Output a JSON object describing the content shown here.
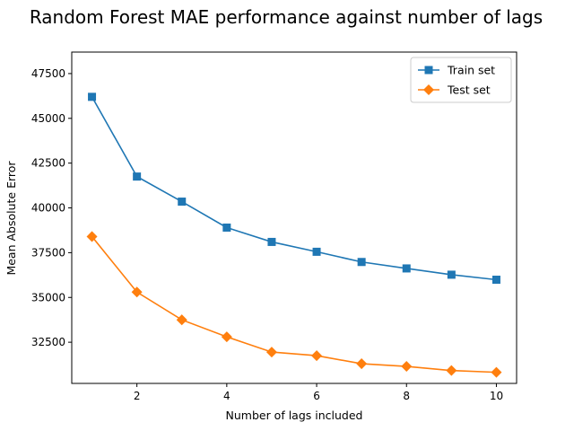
{
  "chart_data": {
    "type": "line",
    "title": "Random Forest MAE performance against number of lags",
    "xlabel": "Number of lags included",
    "ylabel": "Mean Absolute Error",
    "xlim": [
      0.55,
      10.45
    ],
    "ylim": [
      30200,
      48700
    ],
    "xticks": [
      2,
      4,
      6,
      8,
      10
    ],
    "yticks": [
      32500,
      35000,
      37500,
      40000,
      42500,
      45000,
      47500
    ],
    "grid": false,
    "legend_position": "top-right",
    "x": [
      1,
      2,
      3,
      4,
      5,
      6,
      7,
      8,
      9,
      10
    ],
    "series": [
      {
        "name": "Train set",
        "color": "#1f77b4",
        "marker": "square",
        "values": [
          46200,
          41750,
          40350,
          38900,
          38100,
          37550,
          36980,
          36620,
          36270,
          35990
        ]
      },
      {
        "name": "Test set",
        "color": "#ff7f0e",
        "marker": "diamond",
        "values": [
          38400,
          35300,
          33750,
          32800,
          31950,
          31750,
          31300,
          31150,
          30920,
          30820
        ]
      }
    ]
  }
}
